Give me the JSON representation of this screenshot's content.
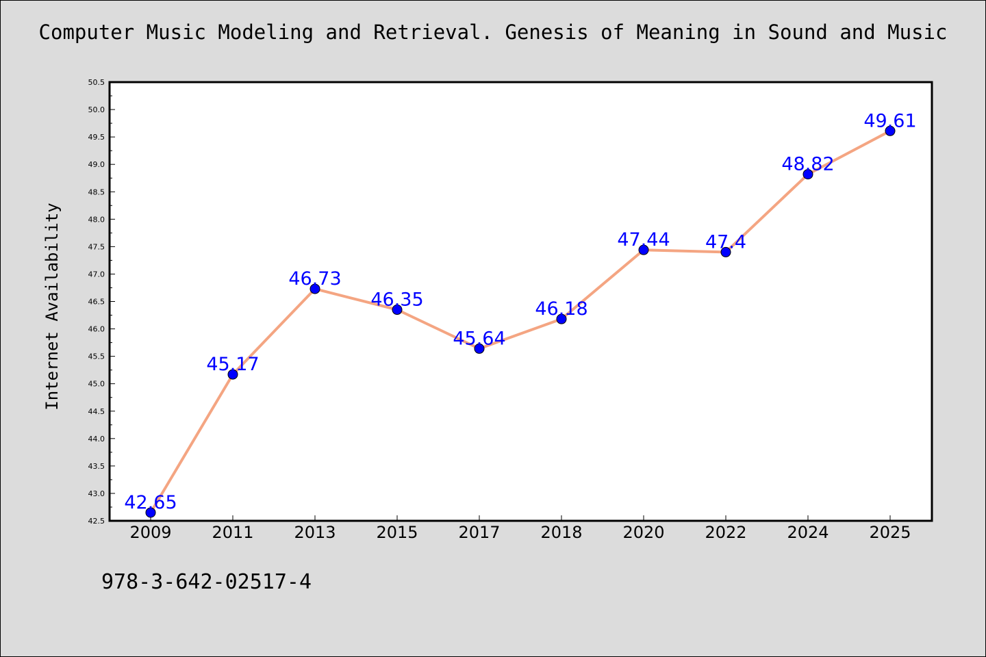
{
  "chart_data": {
    "type": "line",
    "title": "Computer Music Modeling and Retrieval. Genesis of Meaning in Sound and Music",
    "ylabel": "Internet Availability",
    "xlabel": "",
    "categories": [
      "2009",
      "2011",
      "2013",
      "2015",
      "2017",
      "2018",
      "2020",
      "2022",
      "2024",
      "2025"
    ],
    "series": [
      {
        "values": [
          42.65,
          45.17,
          46.73,
          46.35,
          45.64,
          46.18,
          47.44,
          47.4,
          48.82,
          49.61
        ],
        "labels": [
          "42.65",
          "45.17",
          "46.73",
          "46.35",
          "45.64",
          "46.18",
          "47.44",
          "47.4",
          "48.82",
          "49.61"
        ]
      }
    ],
    "ylim": [
      42.5,
      50.5
    ],
    "yticks": [
      "42.5",
      "43.0",
      "43.5",
      "44.0",
      "44.5",
      "45.0",
      "45.5",
      "46.0",
      "46.5",
      "47.0",
      "47.5",
      "48.0",
      "48.5",
      "49.0",
      "49.5",
      "50.0",
      "50.5"
    ],
    "grid": false,
    "legend": "none",
    "colors": {
      "line": "#f4a582",
      "marker": "#0000ff",
      "label": "#0000ff",
      "background": "#dcdcdc",
      "plot_area": "#ffffff"
    }
  },
  "footer": {
    "isbn": "978-3-642-02517-4"
  }
}
